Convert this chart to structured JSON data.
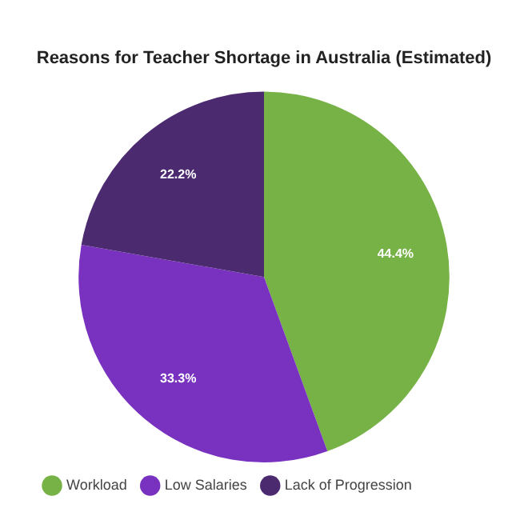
{
  "chart_data": {
    "type": "pie",
    "title": "Reasons for Teacher Shortage in Australia (Estimated)",
    "categories": [
      "Workload",
      "Low Salaries",
      "Lack of Progression"
    ],
    "values": [
      44.4,
      33.3,
      22.2
    ],
    "value_labels": [
      "44.4%",
      "33.3%",
      "22.2%"
    ],
    "colors": [
      "#76b245",
      "#7932c0",
      "#4c2a70"
    ],
    "legend": "bottom left"
  }
}
